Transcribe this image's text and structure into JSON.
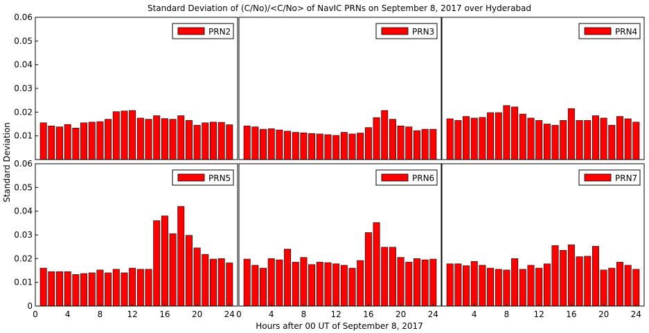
{
  "figure": {
    "title": "Standard Deviation of (C/No)/<C/No> of NavIC PRNs on September 8, 2017 over Hyderabad",
    "xlabel": "Hours after 00 UT of September 8, 2017",
    "ylabel": "Standard Deviation"
  },
  "colors": {
    "bar_fill": "#ff0000",
    "bar_stroke": "#000000",
    "legend_fill": "#ff0000"
  },
  "chart_data": [
    {
      "type": "bar",
      "legend": "PRN2",
      "xlim": [
        0,
        25
      ],
      "ylim": [
        0,
        0.06
      ],
      "xticks": [],
      "yticks": [
        0.01,
        0.02,
        0.03,
        0.04,
        0.05,
        0.06
      ],
      "x": [
        1,
        2,
        3,
        4,
        5,
        6,
        7,
        8,
        9,
        10,
        11,
        12,
        13,
        14,
        15,
        16,
        17,
        18,
        19,
        20,
        21,
        22,
        23,
        24
      ],
      "values": [
        0.0155,
        0.0142,
        0.0138,
        0.0148,
        0.0133,
        0.0155,
        0.0158,
        0.016,
        0.017,
        0.0202,
        0.0205,
        0.0207,
        0.0175,
        0.017,
        0.0185,
        0.0173,
        0.017,
        0.0185,
        0.0165,
        0.0145,
        0.0155,
        0.0158,
        0.0157,
        0.0147
      ]
    },
    {
      "type": "bar",
      "legend": "PRN3",
      "xlim": [
        0,
        25
      ],
      "ylim": [
        0,
        0.06
      ],
      "xticks": [],
      "yticks": [],
      "x": [
        1,
        2,
        3,
        4,
        5,
        6,
        7,
        8,
        9,
        10,
        11,
        12,
        13,
        14,
        15,
        16,
        17,
        18,
        19,
        20,
        21,
        22,
        23,
        24
      ],
      "values": [
        0.0142,
        0.0138,
        0.0128,
        0.013,
        0.0125,
        0.012,
        0.0115,
        0.0113,
        0.011,
        0.0108,
        0.0105,
        0.0102,
        0.0115,
        0.0108,
        0.0112,
        0.0135,
        0.0177,
        0.0207,
        0.017,
        0.0142,
        0.0138,
        0.0122,
        0.0128,
        0.0128
      ]
    },
    {
      "type": "bar",
      "legend": "PRN4",
      "xlim": [
        0,
        25
      ],
      "ylim": [
        0,
        0.06
      ],
      "xticks": [],
      "yticks": [],
      "x": [
        1,
        2,
        3,
        4,
        5,
        6,
        7,
        8,
        9,
        10,
        11,
        12,
        13,
        14,
        15,
        16,
        17,
        18,
        19,
        20,
        21,
        22,
        23,
        24
      ],
      "values": [
        0.0172,
        0.0165,
        0.0182,
        0.0175,
        0.0178,
        0.0198,
        0.0198,
        0.0228,
        0.0222,
        0.0192,
        0.0175,
        0.0165,
        0.015,
        0.0145,
        0.0165,
        0.0215,
        0.0165,
        0.0165,
        0.0185,
        0.0175,
        0.0145,
        0.0182,
        0.0172,
        0.0158
      ]
    },
    {
      "type": "bar",
      "legend": "PRN5",
      "xlim": [
        0,
        25
      ],
      "ylim": [
        0,
        0.06
      ],
      "xticks": [
        0,
        4,
        8,
        12,
        16,
        20,
        24
      ],
      "yticks": [
        0,
        0.01,
        0.02,
        0.03,
        0.04,
        0.05,
        0.06
      ],
      "x": [
        1,
        2,
        3,
        4,
        5,
        6,
        7,
        8,
        9,
        10,
        11,
        12,
        13,
        14,
        15,
        16,
        17,
        18,
        19,
        20,
        21,
        22,
        23,
        24
      ],
      "values": [
        0.016,
        0.0145,
        0.0145,
        0.0145,
        0.0133,
        0.0137,
        0.014,
        0.0152,
        0.014,
        0.0155,
        0.014,
        0.016,
        0.0155,
        0.0155,
        0.036,
        0.038,
        0.0305,
        0.042,
        0.0298,
        0.0245,
        0.0218,
        0.0198,
        0.02,
        0.0182
      ]
    },
    {
      "type": "bar",
      "legend": "PRN6",
      "xlim": [
        0,
        25
      ],
      "ylim": [
        0,
        0.06
      ],
      "xticks": [
        0,
        4,
        8,
        12,
        16,
        20,
        24
      ],
      "yticks": [],
      "x": [
        1,
        2,
        3,
        4,
        5,
        6,
        7,
        8,
        9,
        10,
        11,
        12,
        13,
        14,
        15,
        16,
        17,
        18,
        19,
        20,
        21,
        22,
        23,
        24
      ],
      "values": [
        0.0198,
        0.0172,
        0.016,
        0.02,
        0.0195,
        0.024,
        0.0185,
        0.0205,
        0.0175,
        0.0185,
        0.0183,
        0.0178,
        0.0172,
        0.016,
        0.0192,
        0.031,
        0.0352,
        0.0248,
        0.0248,
        0.0205,
        0.0185,
        0.02,
        0.0195,
        0.0198
      ]
    },
    {
      "type": "bar",
      "legend": "PRN7",
      "xlim": [
        0,
        25
      ],
      "ylim": [
        0,
        0.06
      ],
      "xticks": [
        4,
        8,
        12,
        16,
        20,
        24
      ],
      "yticks": [],
      "x": [
        1,
        2,
        3,
        4,
        5,
        6,
        7,
        8,
        9,
        10,
        11,
        12,
        13,
        14,
        15,
        16,
        17,
        18,
        19,
        20,
        21,
        22,
        23,
        24
      ],
      "values": [
        0.0178,
        0.0178,
        0.017,
        0.0188,
        0.0172,
        0.016,
        0.0155,
        0.0152,
        0.02,
        0.0155,
        0.0172,
        0.016,
        0.0178,
        0.0255,
        0.0235,
        0.0258,
        0.0208,
        0.021,
        0.0252,
        0.0152,
        0.016,
        0.0185,
        0.0172,
        0.0155
      ]
    }
  ]
}
